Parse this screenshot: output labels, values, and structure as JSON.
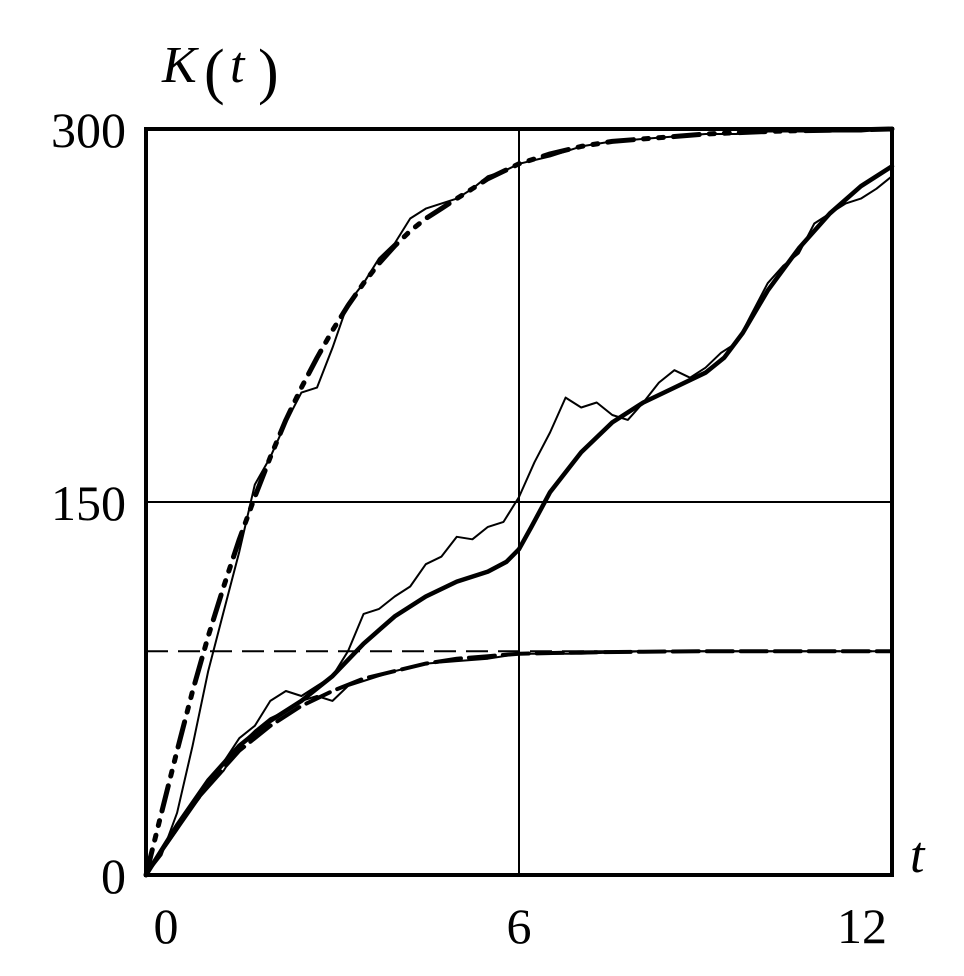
{
  "chart_data": {
    "type": "line",
    "ylabel": "K",
    "ylabel_arg": "t",
    "xlabel": "t",
    "xlim": [
      0,
      12
    ],
    "ylim": [
      0,
      300
    ],
    "x_ticks": [
      0,
      6,
      12
    ],
    "y_ticks": [
      0,
      150,
      300
    ],
    "grid": {
      "x": [
        6
      ],
      "y": [
        150
      ]
    },
    "reference_lines": [
      300,
      90
    ],
    "series": [
      {
        "style": "dash-dot-dot-thick",
        "x": [
          0,
          0.25,
          0.5,
          0.75,
          1,
          1.25,
          1.5,
          1.75,
          2,
          2.25,
          2.5,
          2.75,
          3,
          3.25,
          3.5,
          3.75,
          4,
          4.25,
          4.5,
          4.75,
          5,
          5.25,
          5.5,
          5.75,
          6,
          6.5,
          7,
          7.5,
          8,
          8.5,
          9,
          9.5,
          10,
          10.5,
          11,
          11.5,
          12
        ],
        "y": [
          0,
          25,
          50,
          74,
          96,
          116,
          135,
          152,
          168,
          183,
          196,
          208,
          219,
          229,
          238,
          246,
          253,
          259,
          264,
          268,
          272,
          276,
          280,
          283,
          286,
          290,
          293,
          295,
          296,
          297,
          298,
          298.5,
          299,
          299.3,
          299.5,
          299.7,
          300
        ]
      },
      {
        "style": "thin-noisy",
        "x": [
          0,
          0.25,
          0.5,
          0.75,
          1,
          1.25,
          1.5,
          1.75,
          2,
          2.25,
          2.5,
          2.75,
          3,
          3.25,
          3.5,
          3.75,
          4,
          4.25,
          4.5,
          4.75,
          5,
          5.25,
          5.5,
          5.75,
          6,
          6.5,
          7,
          7.5,
          8,
          8.5,
          9,
          9.5,
          10,
          10.5,
          11,
          11.5,
          12
        ],
        "y": [
          0,
          8,
          25,
          52,
          82,
          106,
          130,
          157,
          168,
          182,
          194,
          196,
          212,
          230,
          238,
          248,
          254,
          264,
          268,
          270,
          272,
          276,
          281,
          283,
          286,
          289,
          293,
          295,
          296,
          297,
          298,
          298,
          299,
          299,
          299,
          299,
          300
        ]
      },
      {
        "style": "thick-solid",
        "x": [
          0,
          0.5,
          1,
          1.5,
          2,
          2.5,
          3,
          3.5,
          4,
          4.5,
          5,
          5.5,
          5.8,
          6,
          6.2,
          6.5,
          7,
          7.5,
          8,
          8.5,
          9,
          9.3,
          9.6,
          10,
          10.5,
          11,
          11.5,
          12
        ],
        "y": [
          0,
          20,
          38,
          52,
          62,
          70,
          80,
          93,
          104,
          112,
          118,
          122,
          126,
          131,
          140,
          154,
          170,
          182,
          190,
          196,
          202,
          208,
          218,
          235,
          252,
          266,
          277,
          285
        ]
      },
      {
        "style": "thin-noisy",
        "x": [
          0,
          0.5,
          1,
          1.5,
          1.75,
          2,
          2.25,
          2.5,
          2.75,
          3,
          3.25,
          3.5,
          3.75,
          4,
          4.25,
          4.5,
          4.75,
          5,
          5.25,
          5.5,
          5.75,
          6,
          6.25,
          6.5,
          6.75,
          7,
          7.25,
          7.5,
          7.75,
          8,
          8.25,
          8.5,
          8.75,
          9,
          9.25,
          9.5,
          9.75,
          10,
          10.25,
          10.5,
          10.75,
          11,
          11.25,
          11.5,
          11.75,
          12
        ],
        "y": [
          0,
          18,
          36,
          55,
          60,
          70,
          74,
          72,
          76,
          80,
          90,
          105,
          107,
          112,
          116,
          125,
          128,
          136,
          135,
          140,
          142,
          152,
          166,
          178,
          192,
          188,
          190,
          185,
          183,
          190,
          198,
          203,
          200,
          204,
          210,
          214,
          226,
          238,
          245,
          250,
          262,
          266,
          270,
          272,
          276,
          281
        ]
      },
      {
        "style": "dash-thin",
        "x": [
          0,
          0.5,
          1,
          1.5,
          2,
          2.5,
          3,
          3.5,
          4,
          4.5,
          5,
          5.5,
          6,
          7,
          8,
          9,
          10,
          11,
          12
        ],
        "y": [
          0,
          20,
          36,
          50,
          60,
          68,
          74,
          79,
          82,
          85,
          87,
          88,
          89,
          89.5,
          89.8,
          90,
          90,
          90,
          90
        ]
      },
      {
        "style": "thin-noisy",
        "x": [
          0,
          0.25,
          0.5,
          0.75,
          1,
          1.25,
          1.5,
          1.75,
          2,
          2.25,
          2.5,
          2.75,
          3,
          3.25,
          3.5,
          3.75,
          4,
          4.5,
          5,
          5.5,
          6,
          7,
          8,
          9,
          10,
          11,
          12
        ],
        "y": [
          0,
          9,
          18,
          28,
          35,
          42,
          52,
          58,
          63,
          66,
          70,
          72,
          70,
          76,
          78,
          80,
          82,
          85,
          86,
          87,
          89,
          89,
          90,
          90,
          90,
          90,
          90
        ]
      }
    ]
  }
}
